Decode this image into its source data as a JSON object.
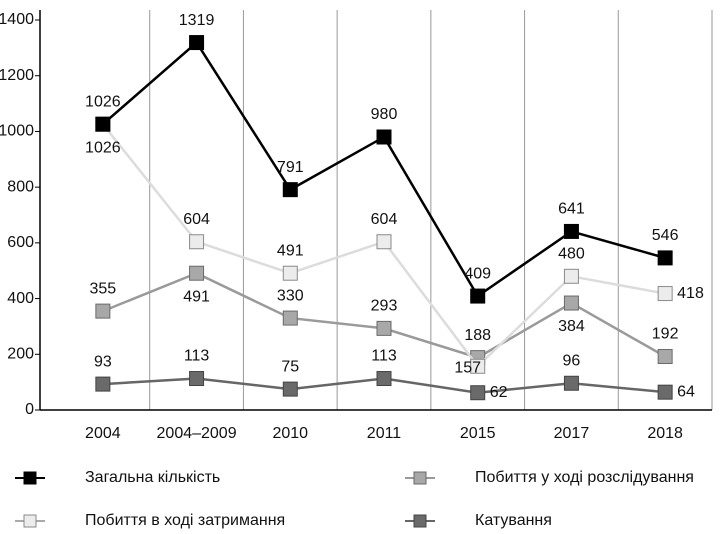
{
  "chart_data": {
    "type": "line",
    "categories": [
      "2004",
      "2004–2009",
      "2010",
      "2011",
      "2015",
      "2017",
      "2018"
    ],
    "series": [
      {
        "name": "Загальна кількість",
        "color": "#000000",
        "values": [
          1026,
          1319,
          791,
          980,
          409,
          641,
          546
        ]
      },
      {
        "name": "Побиття в ході затримання",
        "color": "#dcdcdc",
        "values": [
          1026,
          604,
          491,
          604,
          157,
          480,
          418
        ]
      },
      {
        "name": "Побиття у ході розслідування",
        "color": "#9a9a9a",
        "values": [
          355,
          491,
          330,
          293,
          188,
          384,
          192
        ]
      },
      {
        "name": "Катування",
        "color": "#666666",
        "values": [
          93,
          113,
          75,
          113,
          62,
          96,
          64
        ]
      }
    ],
    "ylim": [
      0,
      1400
    ],
    "yticks": [
      0,
      200,
      400,
      600,
      800,
      1000,
      1200,
      1400
    ],
    "grid": false
  }
}
